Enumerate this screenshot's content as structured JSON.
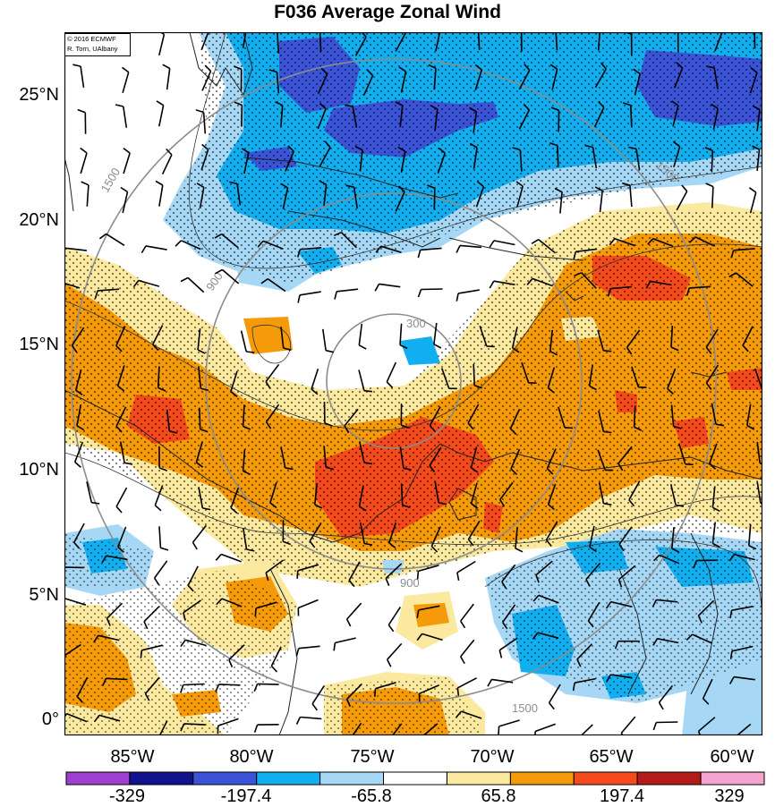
{
  "title": "F036 Average Zonal Wind",
  "credit": {
    "line1": "© 2016 ECMWF",
    "line2": "R. Torn, UAlbany"
  },
  "latitude_labels": [
    "25°N",
    "20°N",
    "15°N",
    "10°N",
    "5°N",
    "0°"
  ],
  "longitude_labels": [
    "85°W",
    "80°W",
    "75°W",
    "70°W",
    "65°W",
    "60°W"
  ],
  "colorbar": {
    "tick_labels": [
      "-329",
      "-197.4",
      "-65.8",
      "65.8",
      "197.4",
      "329"
    ],
    "colors": [
      "#9d3fd0",
      "#12128f",
      "#3b53d6",
      "#12aff0",
      "#a6d8f5",
      "#ffffff",
      "#fbe9a0",
      "#f59a08",
      "#f44a1c",
      "#b31a1a",
      "#f4a4cf"
    ]
  },
  "range_ring_labels": [
    "300",
    "900",
    "1500"
  ],
  "colors": {
    "blue_shade": "#12aff0",
    "orange_shade": "#f59a08",
    "red_shade": "#f44a1c",
    "ring": "#8c8c8c"
  }
}
